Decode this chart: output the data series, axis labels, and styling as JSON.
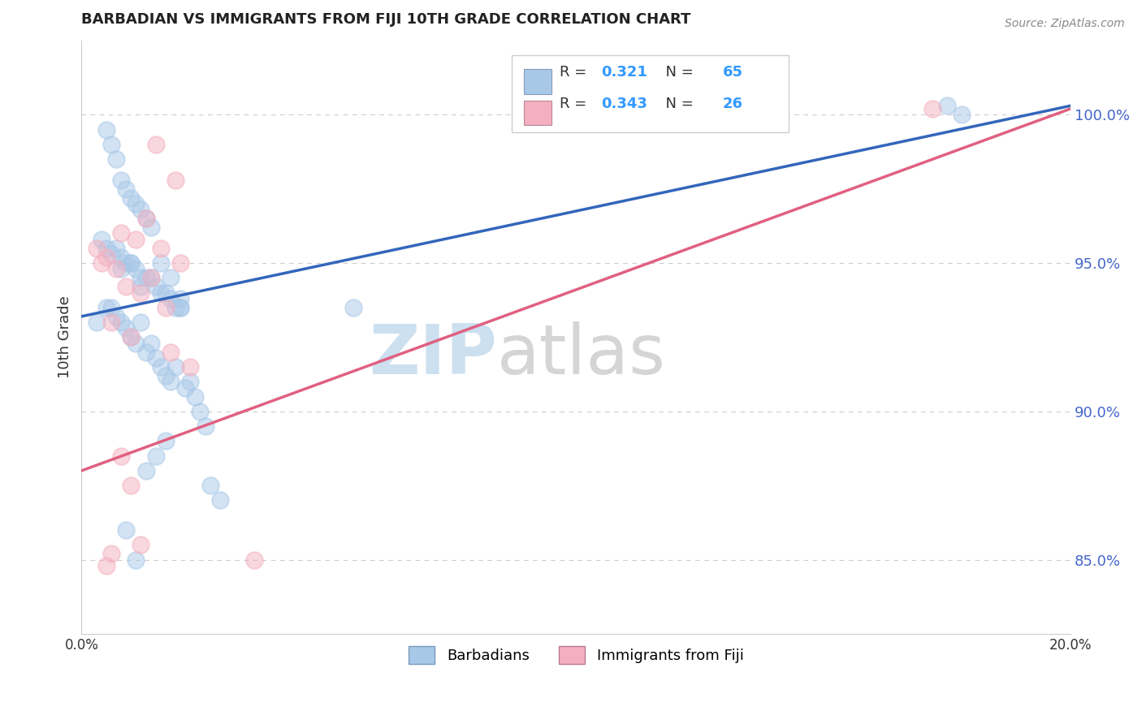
{
  "title": "BARBADIAN VS IMMIGRANTS FROM FIJI 10TH GRADE CORRELATION CHART",
  "source": "Source: ZipAtlas.com",
  "ylabel": "10th Grade",
  "xlim": [
    0.0,
    20.0
  ],
  "ylim": [
    82.5,
    102.5
  ],
  "yticks": [
    85.0,
    90.0,
    95.0,
    100.0
  ],
  "ytick_labels": [
    "85.0%",
    "90.0%",
    "95.0%",
    "100.0%"
  ],
  "blue_R": 0.321,
  "blue_N": 65,
  "pink_R": 0.343,
  "pink_N": 26,
  "blue_color": "#a8c8e8",
  "pink_color": "#f4b0c0",
  "blue_line_color": "#3366bb",
  "pink_line_color": "#e06080",
  "legend_label_blue": "Barbadians",
  "legend_label_pink": "Immigrants from Fiji",
  "blue_line_x0": 0.0,
  "blue_line_y0": 93.2,
  "blue_line_x1": 20.0,
  "blue_line_y1": 100.3,
  "pink_line_x0": 0.0,
  "pink_line_y0": 88.0,
  "pink_line_x1": 20.0,
  "pink_line_y1": 100.2,
  "blue_scatter_x": [
    0.3,
    0.5,
    0.6,
    0.7,
    0.8,
    0.9,
    1.0,
    1.1,
    1.2,
    1.3,
    1.4,
    0.4,
    0.5,
    0.6,
    0.7,
    0.8,
    0.9,
    1.0,
    1.1,
    1.2,
    1.3,
    1.5,
    1.6,
    1.7,
    1.8,
    1.9,
    2.0,
    0.5,
    0.6,
    0.7,
    0.8,
    0.9,
    1.0,
    1.1,
    1.2,
    1.3,
    1.4,
    1.5,
    1.6,
    1.7,
    1.8,
    1.9,
    2.0,
    2.1,
    2.2,
    2.3,
    2.4,
    2.5,
    2.6,
    2.8,
    0.8,
    1.0,
    1.2,
    1.4,
    1.6,
    1.8,
    2.0,
    1.5,
    1.3,
    0.9,
    1.1,
    1.7,
    5.5,
    17.5,
    17.8
  ],
  "blue_scatter_y": [
    93.0,
    99.5,
    99.0,
    98.5,
    97.8,
    97.5,
    97.2,
    97.0,
    96.8,
    96.5,
    96.2,
    95.8,
    95.5,
    95.3,
    95.5,
    95.2,
    95.0,
    95.0,
    94.8,
    94.5,
    94.5,
    94.2,
    94.0,
    94.0,
    93.8,
    93.5,
    93.8,
    93.5,
    93.5,
    93.2,
    93.0,
    92.8,
    92.5,
    92.3,
    93.0,
    92.0,
    92.3,
    91.8,
    91.5,
    91.2,
    91.0,
    91.5,
    93.5,
    90.8,
    91.0,
    90.5,
    90.0,
    89.5,
    87.5,
    87.0,
    94.8,
    95.0,
    94.2,
    94.5,
    95.0,
    94.5,
    93.5,
    88.5,
    88.0,
    86.0,
    85.0,
    89.0,
    93.5,
    100.3,
    100.0
  ],
  "pink_scatter_x": [
    0.3,
    0.4,
    0.5,
    0.6,
    0.7,
    0.8,
    0.9,
    1.0,
    1.1,
    1.2,
    1.3,
    1.4,
    1.5,
    1.6,
    1.7,
    1.8,
    1.9,
    2.0,
    2.2,
    0.8,
    1.0,
    1.2,
    0.6,
    3.5,
    0.5,
    17.2
  ],
  "pink_scatter_y": [
    95.5,
    95.0,
    95.2,
    93.0,
    94.8,
    96.0,
    94.2,
    92.5,
    95.8,
    94.0,
    96.5,
    94.5,
    99.0,
    95.5,
    93.5,
    92.0,
    97.8,
    95.0,
    91.5,
    88.5,
    87.5,
    85.5,
    85.2,
    85.0,
    84.8,
    100.2
  ],
  "background_color": "#ffffff",
  "grid_color": "#cccccc"
}
